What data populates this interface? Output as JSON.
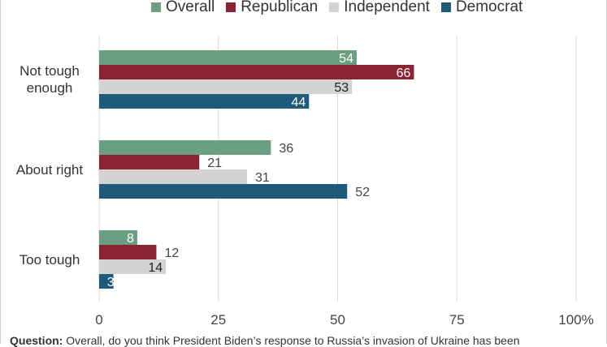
{
  "chart_data": {
    "type": "bar",
    "orientation": "horizontal",
    "categories": [
      "Not tough\nenough",
      "About right",
      "Too tough"
    ],
    "series": [
      {
        "name": "Overall",
        "color": "#6a9f83",
        "values": [
          54,
          36,
          8
        ]
      },
      {
        "name": "Republican",
        "color": "#8a2432",
        "values": [
          66,
          21,
          12
        ]
      },
      {
        "name": "Independent",
        "color": "#d3d3d3",
        "values": [
          53,
          31,
          14
        ]
      },
      {
        "name": "Democrat",
        "color": "#1f5a7a",
        "values": [
          44,
          52,
          3
        ]
      }
    ],
    "xlim": [
      0,
      100
    ],
    "xticks": [
      "0",
      "25",
      "50",
      "75",
      "100%"
    ],
    "grid": true,
    "legend_position": "top"
  },
  "footnote": {
    "label": "Question:",
    "text": " Overall, do you think President Biden’s response to Russia’s invasion of Ukraine has been"
  }
}
